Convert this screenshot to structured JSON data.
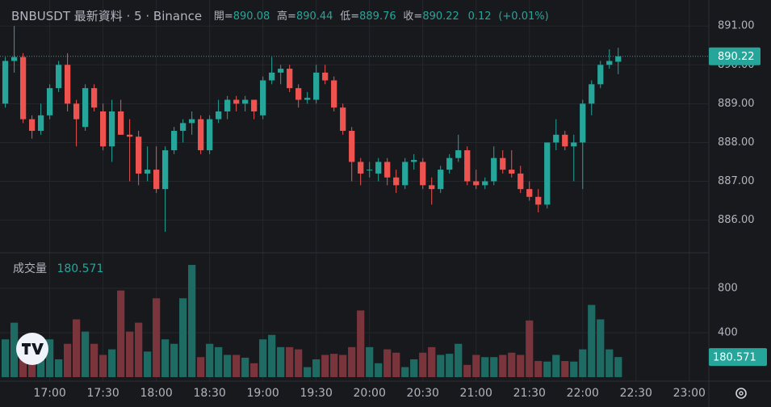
{
  "chart_data": {
    "type": "candlestick",
    "title": "BNBUSDT 最新資料 · 5 · Binance",
    "ohlc_labels": [
      "開=",
      "高=",
      "低=",
      "收="
    ],
    "change": 0.12,
    "change_label": "(+0.01%)",
    "x": [
      "16:35",
      "16:40",
      "16:45",
      "16:50",
      "16:55",
      "17:00",
      "17:05",
      "17:10",
      "17:15",
      "17:20",
      "17:25",
      "17:30",
      "17:35",
      "17:40",
      "17:45",
      "17:50",
      "17:55",
      "18:00",
      "18:05",
      "18:10",
      "18:15",
      "18:20",
      "18:25",
      "18:30",
      "18:35",
      "18:40",
      "18:45",
      "18:50",
      "18:55",
      "19:00",
      "19:05",
      "19:10",
      "19:15",
      "19:20",
      "19:25",
      "19:30",
      "19:35",
      "19:40",
      "19:45",
      "19:50",
      "19:55",
      "20:00",
      "20:05",
      "20:10",
      "20:15",
      "20:20",
      "20:25",
      "20:30",
      "20:35",
      "20:40",
      "20:45",
      "20:50",
      "20:55",
      "21:00",
      "21:05",
      "21:10",
      "21:15",
      "21:20",
      "21:25",
      "21:30",
      "21:35",
      "21:40",
      "21:45",
      "21:50",
      "21:55",
      "22:00",
      "22:05",
      "22:10",
      "22:15",
      "22:20"
    ],
    "open": [
      889.0,
      890.1,
      890.2,
      888.6,
      888.3,
      888.7,
      889.4,
      890.0,
      889.0,
      888.4,
      889.4,
      888.8,
      887.9,
      888.8,
      888.2,
      888.15,
      887.2,
      887.3,
      886.8,
      887.8,
      888.3,
      888.5,
      888.6,
      887.8,
      888.6,
      888.8,
      889.1,
      889.0,
      889.1,
      888.7,
      889.6,
      889.8,
      889.9,
      889.4,
      889.1,
      889.1,
      889.8,
      889.6,
      888.9,
      888.3,
      887.5,
      887.3,
      887.2,
      887.5,
      887.1,
      886.9,
      887.5,
      887.5,
      886.9,
      886.8,
      887.3,
      887.6,
      887.8,
      887.0,
      886.9,
      887.0,
      887.6,
      887.3,
      887.2,
      886.8,
      886.6,
      886.4,
      888.0,
      888.2,
      887.9,
      888.0,
      889.0,
      889.5,
      890.0,
      890.08
    ],
    "high": [
      890.2,
      891.0,
      890.3,
      888.7,
      889.0,
      889.5,
      890.1,
      890.3,
      889.1,
      889.5,
      889.5,
      889.0,
      889.1,
      889.1,
      888.6,
      888.3,
      887.9,
      887.9,
      887.9,
      888.4,
      888.6,
      888.8,
      888.7,
      888.7,
      889.1,
      889.2,
      889.2,
      889.2,
      889.1,
      889.7,
      890.2,
      890.0,
      890.0,
      889.5,
      889.3,
      890.0,
      890.0,
      889.7,
      889.0,
      888.4,
      887.6,
      887.5,
      887.6,
      887.6,
      887.3,
      887.6,
      887.7,
      887.6,
      887.1,
      887.4,
      887.7,
      888.2,
      887.9,
      887.3,
      887.1,
      887.9,
      887.8,
      887.8,
      887.4,
      887.0,
      886.8,
      888.0,
      888.6,
      888.3,
      888.2,
      889.1,
      889.6,
      890.1,
      890.4,
      890.44
    ],
    "low": [
      888.9,
      889.8,
      888.5,
      888.1,
      888.2,
      888.6,
      889.3,
      888.8,
      887.9,
      888.3,
      888.8,
      887.8,
      887.5,
      888.2,
      887.0,
      886.9,
      887.0,
      886.7,
      885.7,
      887.7,
      888.0,
      888.2,
      887.7,
      887.7,
      888.5,
      888.6,
      888.8,
      888.8,
      888.6,
      888.6,
      889.5,
      889.5,
      889.3,
      888.9,
      889.0,
      889.0,
      889.5,
      888.8,
      888.2,
      887.0,
      886.9,
      887.1,
      887.0,
      886.9,
      886.7,
      886.8,
      887.3,
      886.8,
      886.4,
      886.7,
      887.2,
      887.5,
      886.9,
      886.8,
      886.8,
      886.9,
      887.2,
      887.1,
      886.7,
      886.5,
      886.2,
      886.3,
      887.8,
      887.8,
      887.0,
      886.8,
      888.7,
      889.4,
      889.9,
      889.76
    ],
    "close": [
      890.1,
      890.2,
      888.6,
      888.3,
      888.7,
      889.4,
      890.0,
      889.0,
      888.6,
      889.4,
      888.9,
      887.9,
      888.8,
      888.2,
      888.15,
      887.2,
      887.3,
      886.8,
      887.8,
      888.3,
      888.5,
      888.6,
      887.8,
      888.6,
      888.8,
      889.1,
      889.0,
      889.1,
      888.8,
      889.6,
      889.8,
      889.9,
      889.4,
      889.1,
      889.15,
      889.8,
      889.6,
      888.9,
      888.3,
      887.5,
      887.2,
      887.3,
      887.5,
      887.1,
      886.9,
      887.5,
      887.55,
      886.9,
      886.8,
      887.3,
      887.6,
      887.8,
      887.0,
      886.9,
      887.0,
      887.6,
      887.3,
      887.2,
      886.8,
      886.6,
      886.4,
      888.0,
      888.2,
      887.9,
      888.0,
      889.0,
      889.5,
      890.0,
      890.1,
      890.22
    ],
    "ylim": [
      885.16,
      891.67
    ],
    "yticks": [
      {
        "value": 886,
        "label": "886.00"
      },
      {
        "value": 887,
        "label": "887.00"
      },
      {
        "value": 888,
        "label": "888.00"
      },
      {
        "value": 889,
        "label": "889.00"
      },
      {
        "value": 890,
        "label": "890.00"
      },
      {
        "value": 891,
        "label": "891.00"
      }
    ],
    "xlim": [
      "16:32",
      "23:11"
    ],
    "xticks": [
      "17:00",
      "17:30",
      "18:00",
      "18:30",
      "19:00",
      "19:30",
      "20:00",
      "20:30",
      "21:00",
      "21:30",
      "22:00",
      "22:30",
      "23:00"
    ],
    "grid": true,
    "up_color": "#26a69a",
    "down_color": "#ef5350",
    "volume": {
      "label": "成交量",
      "values": [
        340,
        490,
        340,
        300,
        270,
        340,
        160,
        300,
        520,
        410,
        300,
        200,
        250,
        780,
        410,
        490,
        230,
        710,
        340,
        300,
        710,
        1010,
        180,
        300,
        270,
        200,
        200,
        175,
        125,
        340,
        380,
        270,
        270,
        250,
        90,
        160,
        200,
        210,
        200,
        270,
        600,
        270,
        125,
        250,
        220,
        90,
        160,
        220,
        270,
        200,
        210,
        300,
        110,
        200,
        180,
        180,
        200,
        220,
        200,
        510,
        145,
        140,
        200,
        145,
        140,
        250,
        650,
        520,
        250,
        180.571
      ],
      "ylim": [
        0,
        1105
      ],
      "yticks": [
        400,
        800
      ],
      "up_color": "#1e6b64",
      "down_color": "#7a343b"
    }
  }
}
